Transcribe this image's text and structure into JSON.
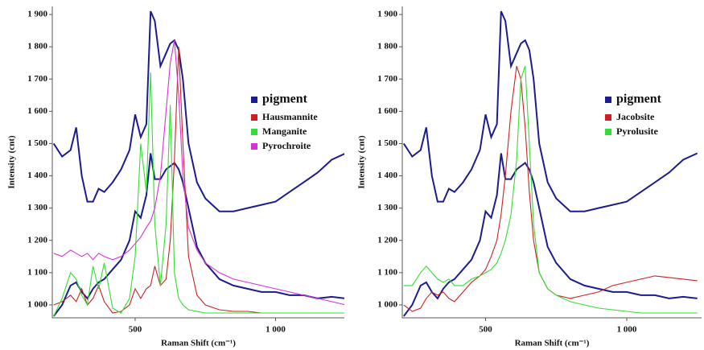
{
  "chart_data": [
    {
      "type": "line",
      "xlabel": "Raman Shift (cm⁻¹)",
      "ylabel": "Intensity (cnt)",
      "xlim": [
        205,
        1245
      ],
      "ylim": [
        960,
        1925
      ],
      "xticks": [
        500,
        {
          "value": 1000,
          "label": "1 000"
        }
      ],
      "yticks": [
        {
          "value": 1000,
          "label": "1 000"
        },
        {
          "value": 1100,
          "label": "1 100"
        },
        {
          "value": 1200,
          "label": "1 200"
        },
        {
          "value": 1300,
          "label": "1 300"
        },
        {
          "value": 1400,
          "label": "1 400"
        },
        {
          "value": 1500,
          "label": "1 500"
        },
        {
          "value": 1600,
          "label": "1 600"
        },
        {
          "value": 1700,
          "label": "1 700"
        },
        {
          "value": 1800,
          "label": "1 800"
        },
        {
          "value": 1900,
          "label": "1 900"
        }
      ],
      "x": [
        210,
        240,
        270,
        290,
        310,
        330,
        350,
        370,
        390,
        420,
        450,
        480,
        500,
        520,
        540,
        555,
        570,
        590,
        610,
        625,
        640,
        655,
        670,
        690,
        720,
        750,
        800,
        850,
        900,
        950,
        1000,
        1050,
        1100,
        1150,
        1200,
        1250
      ],
      "series": [
        {
          "name": "pigment",
          "color": "#1c1c8f",
          "values": [
            1500,
            1460,
            1480,
            1550,
            1400,
            1320,
            1320,
            1360,
            1350,
            1380,
            1420,
            1480,
            1590,
            1520,
            1560,
            1910,
            1880,
            1740,
            1780,
            1810,
            1820,
            1790,
            1700,
            1500,
            1380,
            1330,
            1290,
            1290,
            1300,
            1310,
            1320,
            1350,
            1380,
            1410,
            1450,
            1470
          ]
        },
        {
          "name": "pigment",
          "color": "#1c1c8f",
          "values": [
            965,
            1000,
            1060,
            1070,
            1040,
            1020,
            1050,
            1070,
            1080,
            1110,
            1140,
            1200,
            1290,
            1270,
            1340,
            1470,
            1390,
            1390,
            1420,
            1430,
            1440,
            1420,
            1380,
            1300,
            1180,
            1130,
            1080,
            1060,
            1050,
            1040,
            1040,
            1030,
            1030,
            1020,
            1025,
            1020
          ]
        },
        {
          "name": "Hausmannite",
          "color": "#cc2222",
          "values": [
            1000,
            1010,
            1030,
            1010,
            1050,
            1000,
            1020,
            1060,
            1010,
            975,
            980,
            1000,
            1050,
            1020,
            1050,
            1060,
            1120,
            1060,
            1080,
            1200,
            1450,
            1800,
            1500,
            1150,
            1030,
            1000,
            985,
            980,
            980,
            975,
            975,
            975,
            975,
            975,
            975,
            975
          ]
        },
        {
          "name": "Manganite",
          "color": "#33dd33",
          "values": [
            965,
            1020,
            1100,
            1080,
            1030,
            1000,
            1120,
            1050,
            1130,
            990,
            975,
            1020,
            1150,
            1500,
            1350,
            1720,
            1250,
            1060,
            1250,
            1620,
            1100,
            1020,
            1000,
            985,
            980,
            975,
            975,
            975,
            975,
            975,
            975,
            975,
            975,
            975,
            975,
            975
          ]
        },
        {
          "name": "Pyrochroite",
          "color": "#d633d6",
          "values": [
            1160,
            1150,
            1170,
            1160,
            1150,
            1160,
            1140,
            1160,
            1150,
            1140,
            1150,
            1170,
            1190,
            1210,
            1240,
            1260,
            1300,
            1400,
            1600,
            1750,
            1820,
            1650,
            1400,
            1240,
            1170,
            1130,
            1100,
            1080,
            1070,
            1060,
            1050,
            1040,
            1030,
            1020,
            1010,
            1000
          ]
        }
      ]
    },
    {
      "type": "line",
      "xlabel": "Raman Shift (cm⁻¹)",
      "ylabel": "Intensity (cnt)",
      "xlim": [
        205,
        1265
      ],
      "ylim": [
        960,
        1925
      ],
      "xticks": [
        500,
        {
          "value": 1000,
          "label": "1 000"
        }
      ],
      "yticks": [
        {
          "value": 1000,
          "label": "1 000"
        },
        {
          "value": 1100,
          "label": "1 100"
        },
        {
          "value": 1200,
          "label": "1 200"
        },
        {
          "value": 1300,
          "label": "1 300"
        },
        {
          "value": 1400,
          "label": "1 400"
        },
        {
          "value": 1500,
          "label": "1 500"
        },
        {
          "value": 1600,
          "label": "1 600"
        },
        {
          "value": 1700,
          "label": "1 700"
        },
        {
          "value": 1800,
          "label": "1 800"
        },
        {
          "value": 1900,
          "label": "1 900"
        }
      ],
      "x": [
        210,
        240,
        270,
        290,
        310,
        330,
        350,
        370,
        390,
        420,
        450,
        480,
        500,
        520,
        540,
        555,
        570,
        590,
        610,
        625,
        640,
        655,
        670,
        690,
        720,
        750,
        800,
        850,
        900,
        950,
        1000,
        1050,
        1100,
        1150,
        1200,
        1250
      ],
      "series": [
        {
          "name": "pigment",
          "color": "#1c1c8f",
          "values": [
            1500,
            1460,
            1480,
            1550,
            1400,
            1320,
            1320,
            1360,
            1350,
            1380,
            1420,
            1480,
            1590,
            1520,
            1560,
            1910,
            1880,
            1740,
            1780,
            1810,
            1820,
            1790,
            1700,
            1500,
            1380,
            1330,
            1290,
            1290,
            1300,
            1310,
            1320,
            1350,
            1380,
            1410,
            1450,
            1470
          ]
        },
        {
          "name": "pigment",
          "color": "#1c1c8f",
          "values": [
            965,
            1000,
            1060,
            1070,
            1040,
            1020,
            1050,
            1070,
            1080,
            1110,
            1140,
            1200,
            1290,
            1270,
            1340,
            1470,
            1390,
            1390,
            1420,
            1430,
            1440,
            1420,
            1380,
            1300,
            1180,
            1130,
            1080,
            1060,
            1050,
            1040,
            1040,
            1030,
            1030,
            1020,
            1025,
            1020
          ]
        },
        {
          "name": "Jacobsite",
          "color": "#cc2222",
          "values": [
            1000,
            980,
            990,
            1020,
            1040,
            1030,
            1040,
            1020,
            1010,
            1040,
            1070,
            1090,
            1110,
            1150,
            1200,
            1280,
            1400,
            1600,
            1740,
            1700,
            1550,
            1350,
            1200,
            1100,
            1050,
            1030,
            1020,
            1030,
            1040,
            1060,
            1070,
            1080,
            1090,
            1085,
            1080,
            1075
          ]
        },
        {
          "name": "Pyrolusite",
          "color": "#33dd33",
          "values": [
            1060,
            1060,
            1100,
            1120,
            1100,
            1080,
            1070,
            1080,
            1060,
            1060,
            1080,
            1090,
            1100,
            1110,
            1130,
            1160,
            1200,
            1280,
            1450,
            1700,
            1740,
            1500,
            1250,
            1100,
            1050,
            1030,
            1010,
            1000,
            990,
            985,
            980,
            975,
            975,
            975,
            975,
            975
          ]
        }
      ]
    }
  ]
}
